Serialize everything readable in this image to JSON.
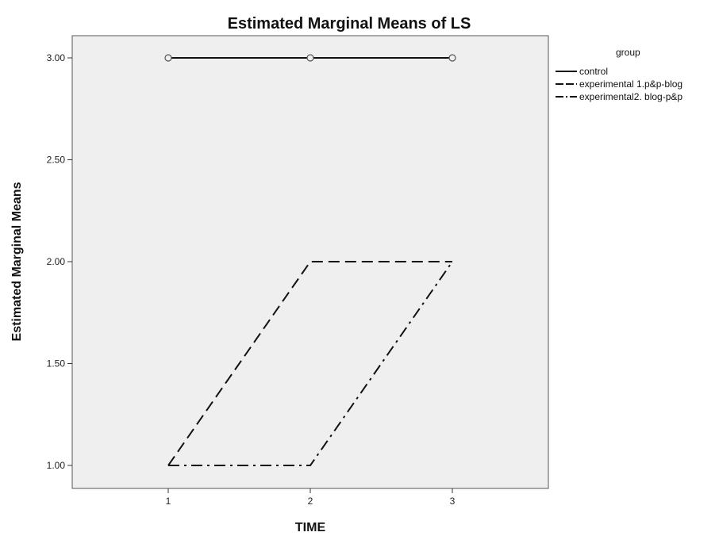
{
  "chart_data": {
    "type": "line",
    "title": "Estimated Marginal Means of LS",
    "xlabel": "TIME",
    "ylabel": "Estimated Marginal Means",
    "x": [
      "1",
      "2",
      "3"
    ],
    "ylim": [
      0.9,
      3.1
    ],
    "yticks": [
      "1.00",
      "1.50",
      "2.00",
      "2.50",
      "3.00"
    ],
    "ytick_values": [
      1.0,
      1.5,
      2.0,
      2.5,
      3.0
    ],
    "legend_title": "group",
    "legend_position": "right",
    "grid": false,
    "series": [
      {
        "name": "control",
        "values": [
          3.0,
          3.0,
          3.0
        ],
        "dash": "solid",
        "markers": true,
        "color": "#111111"
      },
      {
        "name": "experimental 1.p&p-blog",
        "values": [
          1.0,
          2.0,
          2.0
        ],
        "dash": "dashed",
        "markers": false,
        "color": "#111111"
      },
      {
        "name": "experimental2. blog-p&p",
        "values": [
          1.0,
          1.0,
          2.0
        ],
        "dash": "dashdot",
        "markers": false,
        "color": "#111111"
      }
    ],
    "plot_background": "#efefef"
  }
}
